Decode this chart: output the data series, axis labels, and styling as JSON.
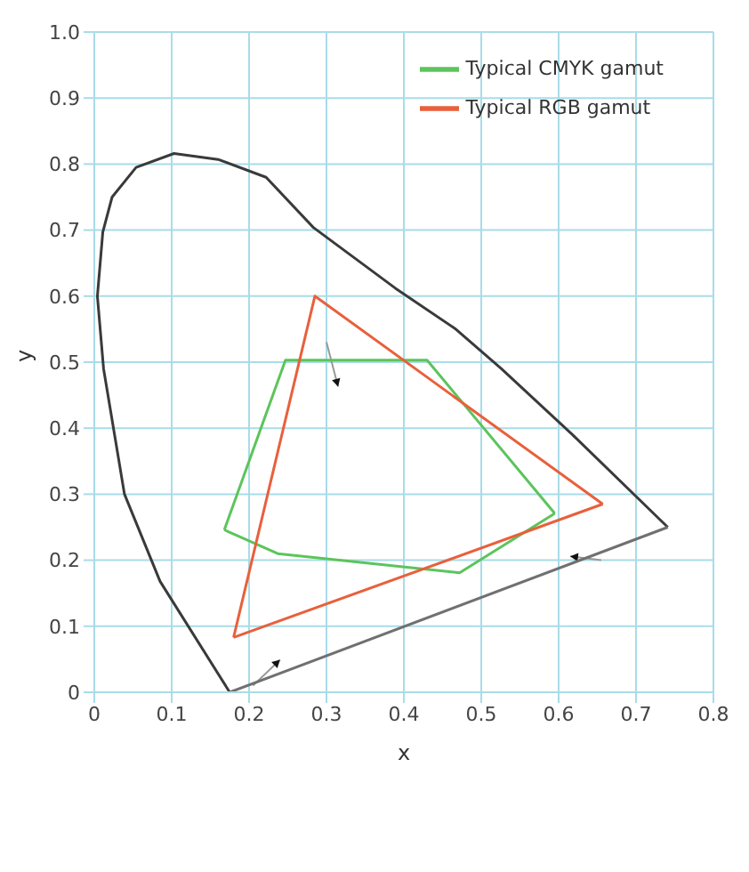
{
  "chart_data": {
    "type": "line",
    "xlabel": "x",
    "ylabel": "y",
    "xlim": [
      0,
      0.8
    ],
    "xticks": [
      0,
      0.1,
      0.2,
      0.3,
      0.4,
      0.5,
      0.6,
      0.7,
      0.8
    ],
    "ylim": [
      0,
      1
    ],
    "yticks": [
      0,
      0.1,
      0.2,
      0.3,
      0.4,
      0.5,
      0.6,
      0.7,
      0.8,
      0.9,
      {
        "value": 1,
        "label": "1.0"
      }
    ],
    "grid": true,
    "legend": "top right",
    "marker": "none",
    "line_style": "solid",
    "series": [
      {
        "color": "#3a3a3a",
        "x": [
          0.175,
          0.085,
          0.039,
          0.012,
          0.004,
          0.011,
          0.023,
          0.054,
          0.103,
          0.16,
          0.222,
          0.283,
          0.389,
          0.466,
          0.526,
          0.618,
          0.741
        ],
        "values": [
          0,
          0.168,
          0.3,
          0.49,
          0.6,
          0.697,
          0.75,
          0.795,
          0.816,
          0.807,
          0.78,
          0.704,
          0.612,
          0.551,
          0.49,
          0.39,
          0.25
        ]
      },
      {
        "color": "#707070",
        "x": [
          0.175,
          0.741
        ],
        "values": [
          0,
          0.25
        ]
      },
      {
        "name": "Typical CMYK gamut",
        "color": "#5cc45c",
        "x": [
          0.168,
          0.247,
          0.43,
          0.595
        ],
        "values": [
          0.246,
          0.503,
          0.503,
          0.271
        ]
      },
      {
        "color": "#5cc45c",
        "x": [
          0.168,
          0.237,
          0.472,
          0.595
        ],
        "values": [
          0.246,
          0.21,
          0.181,
          0.271
        ]
      },
      {
        "name": "Typical RGB gamut",
        "color": "#e8603c",
        "x": [
          0.18,
          0.285,
          0.657
        ],
        "values": [
          0.083,
          0.6,
          0.285
        ]
      },
      {
        "color": "#e8603c",
        "x": [
          0.18,
          0.657
        ],
        "values": [
          0.083,
          0.285
        ]
      }
    ]
  }
}
